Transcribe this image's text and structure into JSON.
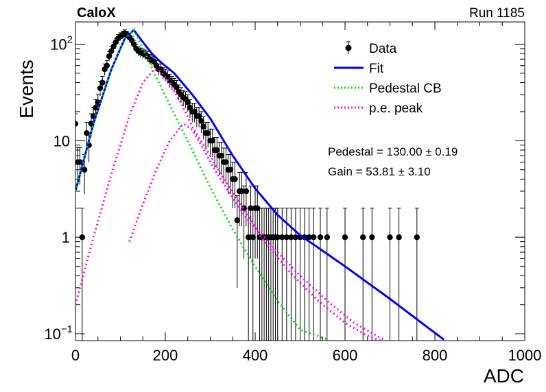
{
  "chart_data": {
    "type": "scatter",
    "title_left": "CaloX",
    "title_right": "Run 1185",
    "xlabel": "ADC",
    "ylabel": "Events",
    "xlim": [
      0,
      1000
    ],
    "ylim": [
      0.085,
      170
    ],
    "y_scale": "log",
    "x_ticks": [
      {
        "value": 0,
        "label": "0"
      },
      {
        "value": 200,
        "label": "200"
      },
      {
        "value": 400,
        "label": "400"
      },
      {
        "value": 600,
        "label": "600"
      },
      {
        "value": 800,
        "label": "800"
      },
      {
        "value": 1000,
        "label": "1000"
      }
    ],
    "y_ticks": [
      {
        "value": 0.1,
        "base": "10",
        "exp": "−1"
      },
      {
        "value": 1,
        "base": "1",
        "exp": ""
      },
      {
        "value": 10,
        "base": "10",
        "exp": ""
      },
      {
        "value": 100,
        "base": "10",
        "exp": "2"
      }
    ],
    "legend": {
      "placement": "top-right",
      "entries": [
        {
          "label": "Data",
          "style": "marker",
          "color": "#000000"
        },
        {
          "label": "Fit",
          "style": "solid",
          "color": "#0000ff"
        },
        {
          "label": "Pedestal CB",
          "style": "dotted",
          "color": "#00dd00"
        },
        {
          "label": "p.e. peak",
          "style": "dotted",
          "color": "#ff00ff"
        }
      ]
    },
    "annotations": {
      "pedestal": "Pedestal = 130.00 ± 0.19",
      "gain": "Gain = 53.81 ± 3.10"
    },
    "series": [
      {
        "name": "Data",
        "kind": "points",
        "color": "#000000",
        "x": [
          0,
          5,
          10,
          15,
          20,
          25,
          30,
          35,
          40,
          45,
          50,
          55,
          60,
          65,
          70,
          75,
          80,
          85,
          90,
          95,
          100,
          105,
          110,
          115,
          120,
          125,
          130,
          135,
          140,
          145,
          150,
          155,
          160,
          165,
          170,
          175,
          180,
          185,
          190,
          195,
          200,
          205,
          210,
          215,
          220,
          225,
          230,
          235,
          240,
          245,
          250,
          255,
          260,
          265,
          270,
          275,
          280,
          285,
          290,
          295,
          300,
          305,
          310,
          315,
          320,
          325,
          330,
          335,
          340,
          345,
          350,
          355,
          360,
          365,
          370,
          375,
          380,
          385,
          390,
          395,
          400,
          405,
          410,
          415,
          420,
          425,
          430,
          435,
          440,
          445,
          450,
          460,
          470,
          480,
          490,
          500,
          510,
          520,
          530,
          545,
          560,
          600,
          640,
          660,
          700,
          720,
          760
        ],
        "y": [
          15,
          6,
          6,
          1,
          5,
          12,
          9,
          15,
          18,
          22,
          25,
          35,
          40,
          55,
          60,
          75,
          85,
          95,
          105,
          115,
          120,
          125,
          130,
          125,
          118,
          110,
          100,
          90,
          85,
          82,
          80,
          78,
          75,
          70,
          68,
          66,
          60,
          55,
          55,
          50,
          48,
          46,
          42,
          40,
          38,
          36,
          32,
          30,
          28,
          27,
          25,
          22,
          20,
          20,
          18,
          18,
          16,
          14,
          12,
          12,
          10,
          10,
          8,
          8,
          7,
          7,
          6,
          6,
          5,
          5,
          4,
          4,
          1.5,
          3,
          3,
          2,
          3,
          1,
          2,
          1,
          2,
          2,
          1,
          1,
          1,
          1,
          1,
          1,
          1,
          1,
          1,
          1,
          1,
          1,
          1,
          1,
          1,
          1,
          1,
          1,
          1,
          1,
          1,
          1,
          1,
          1,
          1
        ],
        "err": [
          4,
          2.5,
          2.5,
          1,
          2.2,
          3.5,
          3,
          4,
          4.2,
          4.7,
          5,
          5.9,
          6.3,
          7.4,
          7.7,
          8.7,
          9.2,
          9.7,
          10.2,
          10.7,
          11,
          11.2,
          11.4,
          11.2,
          10.9,
          10.5,
          10,
          9.5,
          9.2,
          9.1,
          8.9,
          8.8,
          8.7,
          8.4,
          8.2,
          8.1,
          7.7,
          7.4,
          7.4,
          7.1,
          6.9,
          6.8,
          6.5,
          6.3,
          6.2,
          6,
          5.7,
          5.5,
          5.3,
          5.2,
          5,
          4.7,
          4.5,
          4.5,
          4.2,
          4.2,
          4,
          3.7,
          3.5,
          3.5,
          3.2,
          3.2,
          2.8,
          2.8,
          2.6,
          2.6,
          2.4,
          2.4,
          2.2,
          2.2,
          2,
          2,
          1.2,
          1.7,
          1.7,
          1.4,
          1.7,
          1,
          1.4,
          1,
          1.4,
          1.4,
          1,
          1,
          1,
          1,
          1,
          1,
          1,
          1,
          1,
          1,
          1,
          1,
          1,
          1,
          1,
          1,
          1,
          1,
          1,
          1,
          1,
          1,
          1,
          1,
          1
        ]
      },
      {
        "name": "Fit",
        "kind": "line",
        "color": "#0000ff",
        "x": [
          0,
          40,
          80,
          110,
          130,
          150,
          170,
          190,
          220,
          260,
          300,
          350,
          400,
          450,
          500,
          600,
          700,
          820
        ],
        "y": [
          3,
          15,
          55,
          115,
          140,
          105,
          80,
          65,
          50,
          30,
          17,
          7,
          3.2,
          1.7,
          1.05,
          0.5,
          0.23,
          0.087
        ]
      },
      {
        "name": "Pedestal CB",
        "kind": "dotted",
        "color": "#00dd00",
        "x": [
          0,
          40,
          80,
          110,
          130,
          150,
          180,
          220,
          260,
          300,
          350,
          400,
          450,
          500,
          560
        ],
        "y": [
          3,
          15,
          55,
          115,
          140,
          90,
          45,
          19,
          8,
          3.3,
          1.2,
          0.5,
          0.22,
          0.11,
          0.088
        ]
      },
      {
        "name": "p.e. peak",
        "kind": "dotted",
        "color": "#ff00ff",
        "x": [
          0,
          40,
          80,
          120,
          150,
          175,
          190,
          210,
          240,
          260,
          300,
          330,
          360,
          400,
          450,
          500,
          560,
          620,
          700
        ],
        "y": [
          0.2,
          1,
          4.5,
          18,
          40,
          55,
          52,
          40,
          22,
          14,
          7,
          4,
          2.5,
          1.3,
          0.7,
          0.4,
          0.22,
          0.13,
          0.08
        ]
      },
      {
        "name": "p.e. peak 2",
        "kind": "dotted",
        "color": "#ff00ff",
        "x": [
          120,
          150,
          180,
          210,
          240,
          260,
          280,
          310,
          340,
          380,
          430,
          480,
          540,
          600,
          650,
          700
        ],
        "y": [
          0.9,
          2.2,
          5,
          10,
          15,
          13,
          9,
          5,
          3,
          1.6,
          0.8,
          0.42,
          0.22,
          0.13,
          0.095,
          0.078
        ]
      }
    ]
  }
}
